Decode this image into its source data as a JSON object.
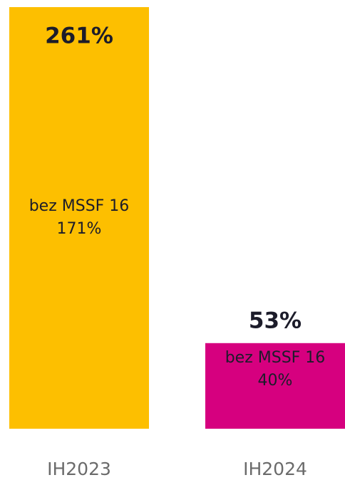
{
  "chart_data": {
    "type": "bar",
    "categories": [
      "IH2023",
      "IH2024"
    ],
    "values": [
      261,
      53
    ],
    "value_labels": [
      "261%",
      "53%"
    ],
    "colors": [
      "#fdbf00",
      "#d6007f"
    ],
    "inner_labels": [
      "bez MSSF 16",
      "bez MSSF 16"
    ],
    "inner_values": [
      "171%",
      "40%"
    ]
  }
}
